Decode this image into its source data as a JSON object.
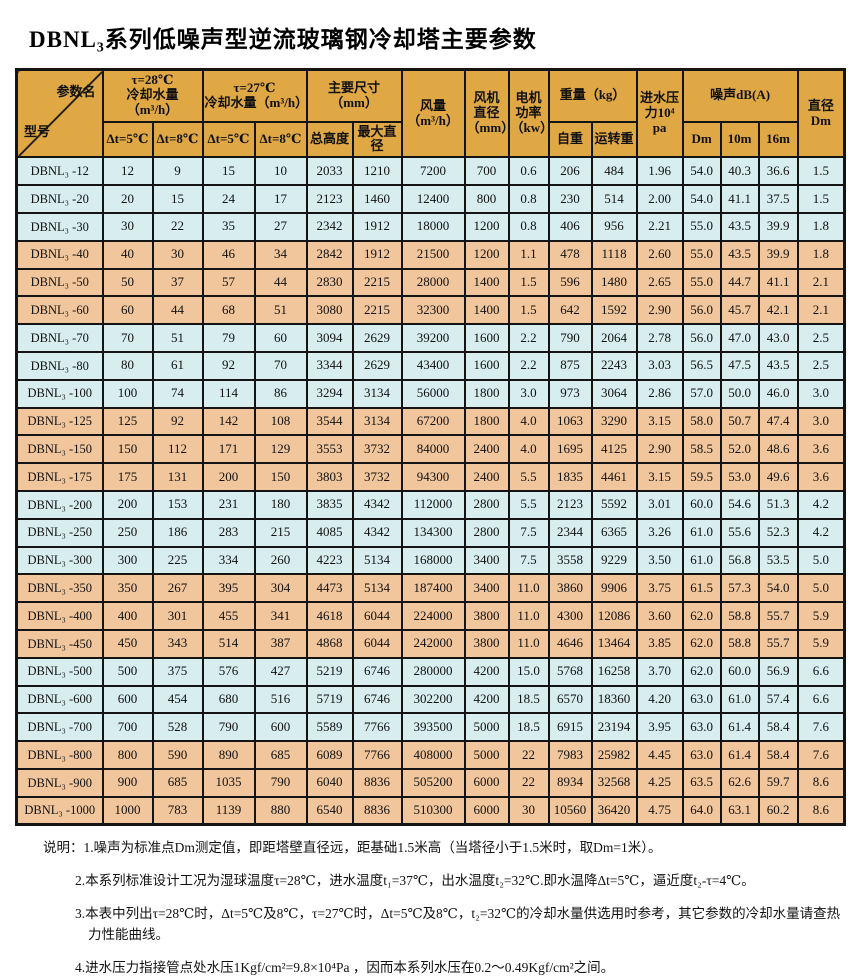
{
  "title": "DBNL₃系列低噪声型逆流玻璃钢冷却塔主要参数",
  "colors": {
    "header_bg": "#e0a845",
    "band_blue": "#d7edee",
    "band_orange": "#f1c69c",
    "border": "#141414"
  },
  "table": {
    "header": {
      "corner_top": "参数名",
      "corner_bottom": "型号",
      "t28_group": "τ=28℃\n冷却水量（m³/h）",
      "t27_group": "τ=27℃\n冷却水量（m³/h）",
      "dims_group": "主要尺寸（mm）",
      "airflow": "风量\n（m³/h）",
      "fan_diameter": "风机\n直径\n（mm）",
      "motor_power": "电机\n功率\n（kw）",
      "weight_group": "重量（kg）",
      "inlet_pressure": "进水压\n力10⁴\npa",
      "noise_group": "噪声dB(A)",
      "diameter": "直径\nDm",
      "dt5_a": "Δt=5℃",
      "dt8_a": "Δt=8℃",
      "dt5_b": "Δt=5℃",
      "dt8_b": "Δt=8℃",
      "total_height": "总高度",
      "max_diameter": "最大直径",
      "self_weight": "自重",
      "running_weight": "运转重",
      "noise_dm": "Dm",
      "noise_10m": "10m",
      "noise_16m": "16m"
    },
    "rows": [
      {
        "model": "DBNL₃ -12",
        "values": [
          "12",
          "9",
          "15",
          "10",
          "2033",
          "1210",
          "7200",
          "700",
          "0.6",
          "206",
          "484",
          "1.96",
          "54.0",
          "40.3",
          "36.6",
          "1.5"
        ]
      },
      {
        "model": "DBNL₃ -20",
        "values": [
          "20",
          "15",
          "24",
          "17",
          "2123",
          "1460",
          "12400",
          "800",
          "0.8",
          "230",
          "514",
          "2.00",
          "54.0",
          "41.1",
          "37.5",
          "1.5"
        ]
      },
      {
        "model": "DBNL₃ -30",
        "values": [
          "30",
          "22",
          "35",
          "27",
          "2342",
          "1912",
          "18000",
          "1200",
          "0.8",
          "406",
          "956",
          "2.21",
          "55.0",
          "43.5",
          "39.9",
          "1.8"
        ]
      },
      {
        "model": "DBNL₃ -40",
        "values": [
          "40",
          "30",
          "46",
          "34",
          "2842",
          "1912",
          "21500",
          "1200",
          "1.1",
          "478",
          "1118",
          "2.60",
          "55.0",
          "43.5",
          "39.9",
          "1.8"
        ]
      },
      {
        "model": "DBNL₃ -50",
        "values": [
          "50",
          "37",
          "57",
          "44",
          "2830",
          "2215",
          "28000",
          "1400",
          "1.5",
          "596",
          "1480",
          "2.65",
          "55.0",
          "44.7",
          "41.1",
          "2.1"
        ]
      },
      {
        "model": "DBNL₃ -60",
        "values": [
          "60",
          "44",
          "68",
          "51",
          "3080",
          "2215",
          "32300",
          "1400",
          "1.5",
          "642",
          "1592",
          "2.90",
          "56.0",
          "45.7",
          "42.1",
          "2.1"
        ]
      },
      {
        "model": "DBNL₃ -70",
        "values": [
          "70",
          "51",
          "79",
          "60",
          "3094",
          "2629",
          "39200",
          "1600",
          "2.2",
          "790",
          "2064",
          "2.78",
          "56.0",
          "47.0",
          "43.0",
          "2.5"
        ]
      },
      {
        "model": "DBNL₃ -80",
        "values": [
          "80",
          "61",
          "92",
          "70",
          "3344",
          "2629",
          "43400",
          "1600",
          "2.2",
          "875",
          "2243",
          "3.03",
          "56.5",
          "47.5",
          "43.5",
          "2.5"
        ]
      },
      {
        "model": "DBNL₃ -100",
        "values": [
          "100",
          "74",
          "114",
          "86",
          "3294",
          "3134",
          "56000",
          "1800",
          "3.0",
          "973",
          "3064",
          "2.86",
          "57.0",
          "50.0",
          "46.0",
          "3.0"
        ]
      },
      {
        "model": "DBNL₃ -125",
        "values": [
          "125",
          "92",
          "142",
          "108",
          "3544",
          "3134",
          "67200",
          "1800",
          "4.0",
          "1063",
          "3290",
          "3.15",
          "58.0",
          "50.7",
          "47.4",
          "3.0"
        ]
      },
      {
        "model": "DBNL₃ -150",
        "values": [
          "150",
          "112",
          "171",
          "129",
          "3553",
          "3732",
          "84000",
          "2400",
          "4.0",
          "1695",
          "4125",
          "2.90",
          "58.5",
          "52.0",
          "48.6",
          "3.6"
        ]
      },
      {
        "model": "DBNL₃ -175",
        "values": [
          "175",
          "131",
          "200",
          "150",
          "3803",
          "3732",
          "94300",
          "2400",
          "5.5",
          "1835",
          "4461",
          "3.15",
          "59.5",
          "53.0",
          "49.6",
          "3.6"
        ]
      },
      {
        "model": "DBNL₃ -200",
        "values": [
          "200",
          "153",
          "231",
          "180",
          "3835",
          "4342",
          "112000",
          "2800",
          "5.5",
          "2123",
          "5592",
          "3.01",
          "60.0",
          "54.6",
          "51.3",
          "4.2"
        ]
      },
      {
        "model": "DBNL₃ -250",
        "values": [
          "250",
          "186",
          "283",
          "215",
          "4085",
          "4342",
          "134300",
          "2800",
          "7.5",
          "2344",
          "6365",
          "3.26",
          "61.0",
          "55.6",
          "52.3",
          "4.2"
        ]
      },
      {
        "model": "DBNL₃ -300",
        "values": [
          "300",
          "225",
          "334",
          "260",
          "4223",
          "5134",
          "168000",
          "3400",
          "7.5",
          "3558",
          "9229",
          "3.50",
          "61.0",
          "56.8",
          "53.5",
          "5.0"
        ]
      },
      {
        "model": "DBNL₃ -350",
        "values": [
          "350",
          "267",
          "395",
          "304",
          "4473",
          "5134",
          "187400",
          "3400",
          "11.0",
          "3860",
          "9906",
          "3.75",
          "61.5",
          "57.3",
          "54.0",
          "5.0"
        ]
      },
      {
        "model": "DBNL₃ -400",
        "values": [
          "400",
          "301",
          "455",
          "341",
          "4618",
          "6044",
          "224000",
          "3800",
          "11.0",
          "4300",
          "12086",
          "3.60",
          "62.0",
          "58.8",
          "55.7",
          "5.9"
        ]
      },
      {
        "model": "DBNL₃ -450",
        "values": [
          "450",
          "343",
          "514",
          "387",
          "4868",
          "6044",
          "242000",
          "3800",
          "11.0",
          "4646",
          "13464",
          "3.85",
          "62.0",
          "58.8",
          "55.7",
          "5.9"
        ]
      },
      {
        "model": "DBNL₃ -500",
        "values": [
          "500",
          "375",
          "576",
          "427",
          "5219",
          "6746",
          "280000",
          "4200",
          "15.0",
          "5768",
          "16258",
          "3.70",
          "62.0",
          "60.0",
          "56.9",
          "6.6"
        ]
      },
      {
        "model": "DBNL₃ -600",
        "values": [
          "600",
          "454",
          "680",
          "516",
          "5719",
          "6746",
          "302200",
          "4200",
          "18.5",
          "6570",
          "18360",
          "4.20",
          "63.0",
          "61.0",
          "57.4",
          "6.6"
        ]
      },
      {
        "model": "DBNL₃ -700",
        "values": [
          "700",
          "528",
          "790",
          "600",
          "5589",
          "7766",
          "393500",
          "5000",
          "18.5",
          "6915",
          "23194",
          "3.95",
          "63.0",
          "61.4",
          "58.4",
          "7.6"
        ]
      },
      {
        "model": "DBNL₃ -800",
        "values": [
          "800",
          "590",
          "890",
          "685",
          "6089",
          "7766",
          "408000",
          "5000",
          "22",
          "7983",
          "25982",
          "4.45",
          "63.0",
          "61.4",
          "58.4",
          "7.6"
        ]
      },
      {
        "model": "DBNL₃ -900",
        "values": [
          "900",
          "685",
          "1035",
          "790",
          "6040",
          "8836",
          "505200",
          "6000",
          "22",
          "8934",
          "32568",
          "4.25",
          "63.5",
          "62.6",
          "59.7",
          "8.6"
        ]
      },
      {
        "model": "DBNL₃ -1000",
        "values": [
          "1000",
          "783",
          "1139",
          "880",
          "6540",
          "8836",
          "510300",
          "6000",
          "30",
          "10560",
          "36420",
          "4.75",
          "64.0",
          "63.1",
          "60.2",
          "8.6"
        ]
      }
    ]
  },
  "notes": {
    "label": "说明：",
    "items": [
      "1.噪声为标准点Dm测定值，即距塔壁直径远，距基础1.5米高（当塔径小于1.5米时，取Dm=1米）。",
      "2.本系列标准设计工况为湿球温度τ=28℃，进水温度t₁=37℃，出水温度t₂=32℃.即水温降Δt=5℃，逼近度t₂-τ=4℃。",
      "3.本表中列出τ=28℃时，Δt=5℃及8℃，τ=27℃时，Δt=5℃及8℃，t₂=32℃的冷却水量供选用时参考，其它参数的冷却水量请查热力性能曲线。",
      "4.进水压力指接管点处水压1Kgf/cm²=9.8×10⁴Pa ，因而本系列水压在0.2～0.49Kgf/cm²之间。"
    ]
  }
}
